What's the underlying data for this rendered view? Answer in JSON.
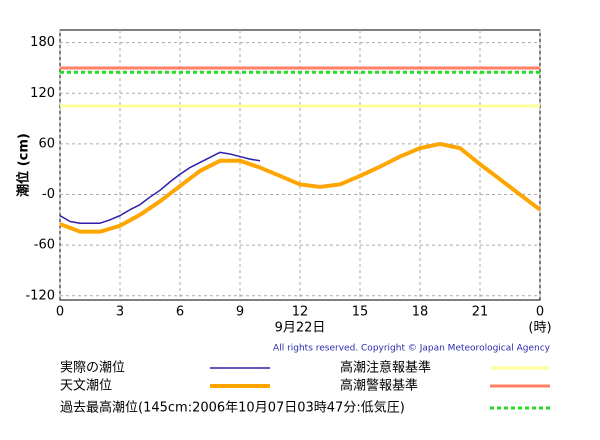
{
  "chart_data": {
    "type": "line",
    "y_label": "潮位 (cm)",
    "x_label": "9月22日",
    "x_unit": "(時)",
    "copyright": "All rights reserved. Copyright © Japan Meteorological Agency",
    "xlim": [
      0,
      24
    ],
    "xticks": [
      0,
      3,
      6,
      9,
      12,
      15,
      18,
      21,
      {
        "value": 24,
        "label": "0"
      }
    ],
    "ylim": [
      -125,
      195
    ],
    "yticks": [
      -120,
      -60,
      {
        "value": 0,
        "label": "-0"
      },
      60,
      120,
      180
    ],
    "grid": true,
    "series": [
      {
        "name": "実際の潮位",
        "color": "#2e1fa8",
        "x": [
          0,
          0.5,
          1,
          1.5,
          2,
          2.5,
          3,
          3.5,
          4,
          4.5,
          5,
          5.5,
          6,
          6.5,
          7,
          7.5,
          8,
          8.5,
          9,
          9.5,
          10
        ],
        "values": [
          -25,
          -32,
          -34,
          -34,
          -34,
          -30,
          -25,
          -18,
          -12,
          -3,
          5,
          15,
          24,
          32,
          38,
          44,
          50,
          48,
          45,
          42,
          40
        ]
      },
      {
        "name": "天文潮位",
        "color": "#ffa500",
        "x": [
          0,
          1,
          2,
          3,
          4,
          5,
          6,
          7,
          8,
          9,
          10,
          11,
          12,
          13,
          14,
          15,
          16,
          17,
          18,
          19,
          20,
          21,
          22,
          23,
          24
        ],
        "values": [
          -35,
          -44,
          -44,
          -37,
          -24,
          -8,
          10,
          28,
          40,
          40,
          32,
          22,
          12,
          9,
          12,
          22,
          33,
          45,
          55,
          60,
          55,
          36,
          18,
          0,
          -18
        ]
      }
    ],
    "reference_lines": [
      {
        "name": "高潮注意報基準",
        "value": 105,
        "color": "#ffff99"
      },
      {
        "name": "高潮警報基準",
        "value": 150,
        "color": "#ff7f66"
      },
      {
        "name": "過去最高潮位(145cm:2006年10月07日03時47分:低気圧)",
        "value": 145,
        "color": "#22dd22",
        "dashed": true
      }
    ]
  }
}
